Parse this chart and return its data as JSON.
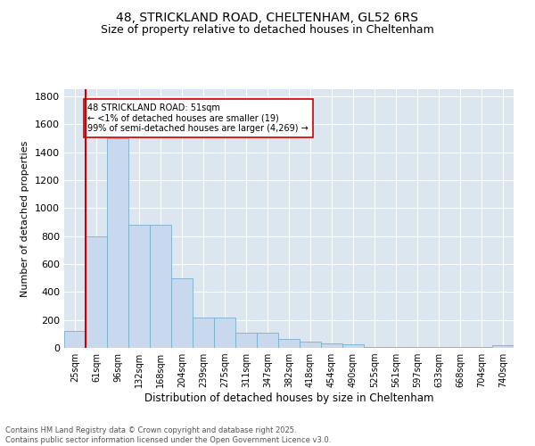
{
  "title1": "48, STRICKLAND ROAD, CHELTENHAM, GL52 6RS",
  "title2": "Size of property relative to detached houses in Cheltenham",
  "xlabel": "Distribution of detached houses by size in Cheltenham",
  "ylabel": "Number of detached properties",
  "bin_labels": [
    "25sqm",
    "61sqm",
    "96sqm",
    "132sqm",
    "168sqm",
    "204sqm",
    "239sqm",
    "275sqm",
    "311sqm",
    "347sqm",
    "382sqm",
    "418sqm",
    "454sqm",
    "490sqm",
    "525sqm",
    "561sqm",
    "597sqm",
    "633sqm",
    "668sqm",
    "704sqm",
    "740sqm"
  ],
  "bar_values": [
    120,
    800,
    1500,
    880,
    880,
    500,
    215,
    215,
    110,
    110,
    65,
    45,
    30,
    25,
    5,
    5,
    5,
    5,
    5,
    5,
    18
  ],
  "bar_color": "#c9d9ed",
  "bar_edge_color": "#7aaecc",
  "vline_color": "#cc0000",
  "annotation_text": "48 STRICKLAND ROAD: 51sqm\n← <1% of detached houses are smaller (19)\n99% of semi-detached houses are larger (4,269) →",
  "annotation_box_color": "#ffffff",
  "annotation_box_edge": "#cc0000",
  "ylim": [
    0,
    1850
  ],
  "yticks": [
    0,
    200,
    400,
    600,
    800,
    1000,
    1200,
    1400,
    1600,
    1800
  ],
  "background_color": "#dce6f0",
  "footer_text": "Contains HM Land Registry data © Crown copyright and database right 2025.\nContains public sector information licensed under the Open Government Licence v3.0.",
  "title_fontsize": 10,
  "subtitle_fontsize": 9
}
